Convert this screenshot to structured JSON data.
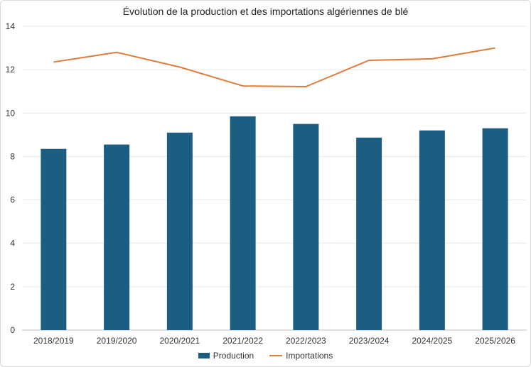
{
  "chart_data": {
    "type": "bar",
    "title": "Évolution de la production et des importations algériennes de blé",
    "categories": [
      "2018/2019",
      "2019/2020",
      "2020/2021",
      "2021/2022",
      "2022/2023",
      "2023/2024",
      "2024/2025",
      "2025/2026"
    ],
    "series": [
      {
        "name": "Production",
        "type": "bar",
        "color": "#1b5e82",
        "values": [
          8.35,
          8.55,
          9.1,
          9.85,
          9.5,
          8.87,
          9.2,
          9.3
        ]
      },
      {
        "name": "Importations",
        "type": "line",
        "color": "#e07b39",
        "values": [
          12.35,
          12.8,
          12.12,
          11.25,
          11.22,
          12.43,
          12.5,
          13.0
        ]
      }
    ],
    "ylim": [
      0,
      14
    ],
    "yticks": [
      0,
      2,
      4,
      6,
      8,
      10,
      12,
      14
    ],
    "grid": true,
    "legend": "bottom"
  }
}
